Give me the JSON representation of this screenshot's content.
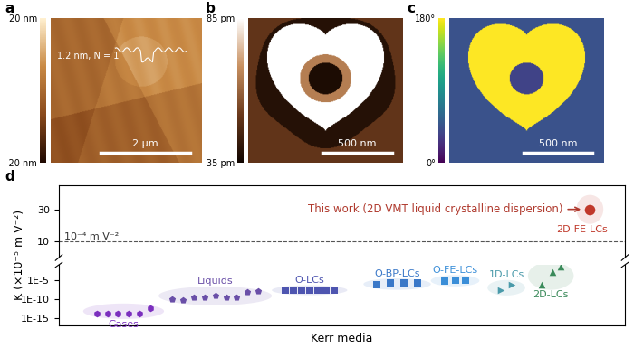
{
  "panels": [
    {
      "label": "a",
      "profile_label": "1.2 nm, N = 1",
      "scale_bar": "2 μm",
      "colorbar": {
        "range": [
          -20,
          20
        ],
        "ticks": [
          {
            "value": -20,
            "label": "-20 nm"
          },
          {
            "value": 20,
            "label": "20 nm"
          }
        ]
      }
    },
    {
      "label": "b",
      "scale_bar": "500 nm",
      "colorbar": {
        "range": [
          35,
          85
        ],
        "ticks": [
          {
            "value": 35,
            "label": "35 pm"
          },
          {
            "value": 85,
            "label": "85 pm"
          }
        ]
      }
    },
    {
      "label": "c",
      "scale_bar": "500 nm",
      "colorbar": {
        "range": [
          0,
          180
        ],
        "ticks": [
          {
            "value": 0,
            "label": "0°"
          },
          {
            "value": 180,
            "label": "180°"
          }
        ]
      }
    },
    {
      "label": "d"
    }
  ],
  "chart_data": [
    {
      "type": "scatter",
      "ylabel": "K (×10⁻⁵ m V⁻²)",
      "xlim": [
        0,
        105
      ],
      "ylim": [
        0,
        45
      ],
      "yticks": [
        10,
        30
      ],
      "tick_labels": "y",
      "reference_line": {
        "value": 10,
        "label": "10⁻⁴ m V⁻²",
        "line_style": "dashed"
      },
      "annotation": {
        "text": "This work (2D VMT liquid crystalline dispersion)",
        "color": "#b03a2e"
      },
      "series": [
        {
          "name": "2D-FE-LCs",
          "color": "#c0392b",
          "marker": "circle",
          "x": [
            98.5
          ],
          "values": [
            30
          ]
        }
      ]
    },
    {
      "type": "scatter",
      "xlabel": "Kerr media",
      "log": "y",
      "xlim": [
        0,
        105
      ],
      "ylim": [
        1e-17,
        0.1
      ],
      "yticks": [
        {
          "value": 1e-15,
          "label": "1E-15"
        },
        {
          "value": 1e-10,
          "label": "1E-10"
        },
        {
          "value": 1e-05,
          "label": "1E-5"
        }
      ],
      "tick_labels": "y",
      "series": [
        {
          "name": "Gases",
          "color": "#7b2fbe",
          "marker": "hexagon",
          "x": [
            7,
            9,
            11,
            13,
            15,
            17
          ],
          "values": [
            1e-14,
            1e-14,
            1e-14,
            1e-14,
            1e-14,
            3e-13
          ]
        },
        {
          "name": "Liquids",
          "color": "#6a4fa8",
          "marker": "pentagon",
          "x": [
            21,
            23,
            25,
            27,
            29,
            31,
            33,
            35,
            37
          ],
          "values": [
            1e-10,
            4e-11,
            2e-10,
            3e-10,
            7e-10,
            3e-10,
            3e-10,
            6e-09,
            1e-08
          ]
        },
        {
          "name": "O-LCs",
          "color": "#4e55b0",
          "marker": "square",
          "x": [
            42,
            43.5,
            45,
            46.5,
            48,
            49.5,
            51
          ],
          "values": [
            2e-08,
            2e-08,
            2e-08,
            2e-08,
            2e-08,
            2e-08,
            2e-08
          ]
        },
        {
          "name": "O-BP-LCs",
          "color": "#3a78c8",
          "marker": "square",
          "x": [
            59,
            61.5,
            64,
            66.5
          ],
          "values": [
            5e-07,
            1.3e-06,
            1.3e-06,
            1.3e-06
          ]
        },
        {
          "name": "O-FE-LCs",
          "color": "#3a8ed8",
          "marker": "square",
          "x": [
            71.5,
            73.5,
            75.5
          ],
          "values": [
            4e-06,
            1e-05,
            1e-05
          ]
        },
        {
          "name": "1D-LCs",
          "color": "#4a9aaa",
          "marker": "triangle_right",
          "x": [
            82,
            84
          ],
          "values": [
            1.6e-08,
            5e-07
          ]
        },
        {
          "name": "2D-LCs",
          "color": "#3a8a5a",
          "marker": "triangle_up",
          "x": [
            89.5,
            91.5,
            93
          ],
          "values": [
            5e-07,
            0.001,
            0.03
          ]
        }
      ]
    }
  ]
}
